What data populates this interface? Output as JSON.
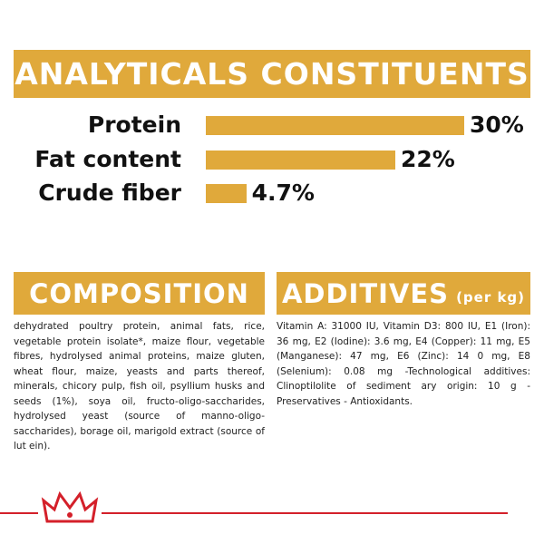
{
  "chart_data": {
    "type": "bar",
    "orientation": "horizontal",
    "title": "ANALYTICALS CONSTITUENTS",
    "categories": [
      "Protein",
      "Fat content",
      "Crude fiber"
    ],
    "values": [
      30,
      22,
      4.7
    ],
    "value_labels": [
      "30%",
      "22%",
      "4.7%"
    ],
    "color": "#e0a93b"
  },
  "composition": {
    "title": "COMPOSITION",
    "text": "dehydrated poultry protein, animal fats, rice, vegetable protein isolate*, maize flour, vegetable fibres, hydrolysed animal proteins, maize gluten, wheat flour, maize, yeasts and parts thereof, minerals, chicory pulp, fish oil, psyllium husks and seeds (1%), soya oil, fructo-oligo-saccharides, hydrolysed yeast (source of manno-oligo-saccharides), borage oil, marigold extract (source of lut ein)."
  },
  "additives": {
    "title": "ADDITIVES",
    "subtitle": "(per kg)",
    "text": "Vitamin A: 31000 IU, Vitamin D3: 800 IU, E1 (Iron): 36 mg, E2 (Iodine): 3.6 mg, E4 (Copper): 11 mg, E5 (Manganese): 47 mg, E6 (Zinc): 14 0 mg, E8 (Selenium): 0.08 mg -Technological additives: Clinoptilolite of sediment ary origin: 10 g - Preservatives - Antioxidants."
  }
}
